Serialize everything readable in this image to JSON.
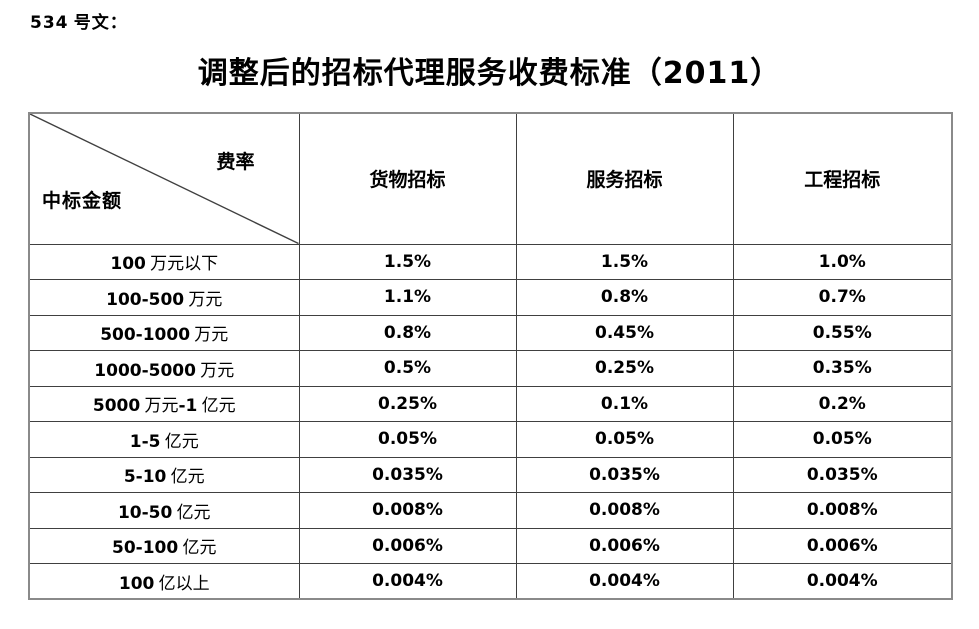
{
  "doc_number": "534 号文：",
  "title": "调整后的招标代理服务收费标准（2011）",
  "table": {
    "corner": {
      "top_right": "费率",
      "bottom_left": "中标金额"
    },
    "columns": [
      "货物招标",
      "服务招标",
      "工程招标"
    ],
    "rows": [
      {
        "label": "100 万元以下",
        "values": [
          "1.5%",
          "1.5%",
          "1.0%"
        ]
      },
      {
        "label": "100-500 万元",
        "values": [
          "1.1%",
          "0.8%",
          "0.7%"
        ]
      },
      {
        "label": "500-1000 万元",
        "values": [
          "0.8%",
          "0.45%",
          "0.55%"
        ]
      },
      {
        "label": "1000-5000 万元",
        "values": [
          "0.5%",
          "0.25%",
          "0.35%"
        ]
      },
      {
        "label": "5000 万元-1 亿元",
        "values": [
          "0.25%",
          "0.1%",
          "0.2%"
        ]
      },
      {
        "label": "1-5 亿元",
        "values": [
          "0.05%",
          "0.05%",
          "0.05%"
        ]
      },
      {
        "label": "5-10 亿元",
        "values": [
          "0.035%",
          "0.035%",
          "0.035%"
        ]
      },
      {
        "label": "10-50 亿元",
        "values": [
          "0.008%",
          "0.008%",
          "0.008%"
        ]
      },
      {
        "label": "50-100 亿元",
        "values": [
          "0.006%",
          "0.006%",
          "0.006%"
        ]
      },
      {
        "label": "100 亿以上",
        "values": [
          "0.004%",
          "0.004%",
          "0.004%"
        ]
      }
    ]
  },
  "colors": {
    "text": "#000000",
    "border_outer": "#8a8a8a",
    "border_inner": "#404040",
    "background": "#ffffff"
  }
}
